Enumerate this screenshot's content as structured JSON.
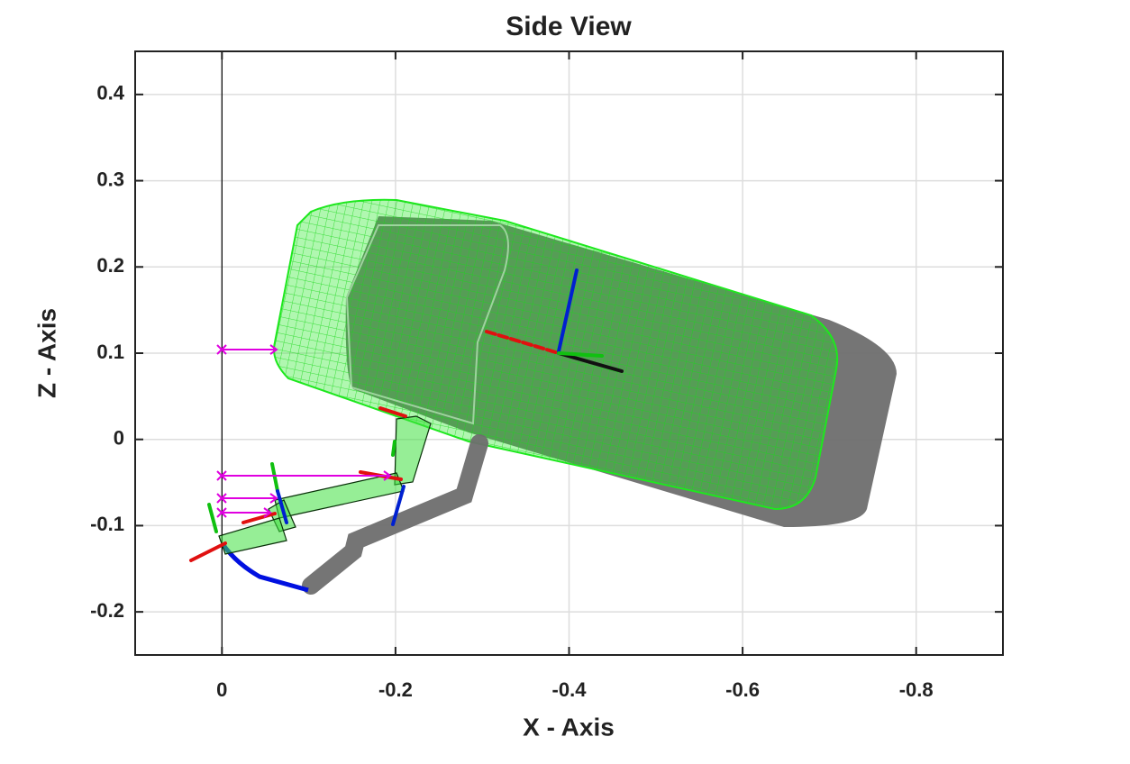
{
  "chart_data": {
    "type": "plot",
    "title": "Side View",
    "xlabel": "X - Axis",
    "ylabel": "Z - Axis",
    "xlim": [
      0.1,
      -0.9
    ],
    "ylim": [
      -0.25,
      0.45
    ],
    "xticks": [
      0,
      -0.2,
      -0.4,
      -0.6,
      -0.8
    ],
    "yticks": [
      -0.2,
      -0.1,
      0,
      0.1,
      0.2,
      0.3,
      0.4
    ],
    "grid": true
  }
}
